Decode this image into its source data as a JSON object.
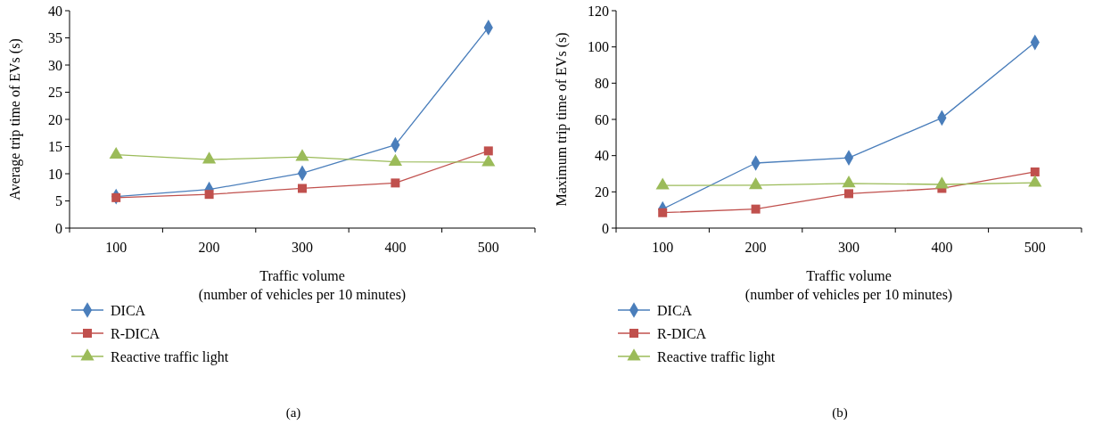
{
  "chart_data": [
    {
      "type": "line",
      "categories": [
        "100",
        "200",
        "300",
        "400",
        "500"
      ],
      "xlabel": "Traffic volume\n(number of vehicles per 10 minutes)",
      "ylabel": "Average trip time of EVs (s)",
      "ylim": [
        0,
        40
      ],
      "yticks": [
        0,
        5,
        10,
        15,
        20,
        25,
        30,
        35,
        40
      ],
      "grid": false,
      "legend": "bottom",
      "annotations": [
        "(a)"
      ],
      "series": [
        {
          "name": "DICA",
          "color": "#4a7ebb",
          "marker": "diamond",
          "values": [
            5.8,
            7.1,
            10.1,
            15.3,
            36.9
          ]
        },
        {
          "name": "R-DICA",
          "color": "#c0504d",
          "marker": "square",
          "values": [
            5.6,
            6.2,
            7.3,
            8.3,
            14.2
          ]
        },
        {
          "name": "Reactive traffic light",
          "color": "#9bbb59",
          "marker": "triangle",
          "values": [
            13.5,
            12.6,
            13.1,
            12.2,
            12.1
          ]
        }
      ]
    },
    {
      "type": "line",
      "categories": [
        "100",
        "200",
        "300",
        "400",
        "500"
      ],
      "xlabel": "Traffic volume\n(number of vehicles per 10 minutes)",
      "ylabel": "Maximum trip time of EVs (s)",
      "ylim": [
        0,
        120
      ],
      "yticks": [
        0,
        20,
        40,
        60,
        80,
        100,
        120
      ],
      "grid": false,
      "legend": "bottom",
      "annotations": [
        "(b)"
      ],
      "series": [
        {
          "name": "DICA",
          "color": "#4a7ebb",
          "marker": "diamond",
          "values": [
            10.5,
            35.9,
            38.8,
            60.8,
            102.5
          ]
        },
        {
          "name": "R-DICA",
          "color": "#c0504d",
          "marker": "square",
          "values": [
            8.5,
            10.5,
            19,
            21.9,
            31
          ]
        },
        {
          "name": "Reactive traffic light",
          "color": "#9bbb59",
          "marker": "triangle",
          "values": [
            23.5,
            23.7,
            24.7,
            24.1,
            25
          ]
        }
      ]
    }
  ]
}
